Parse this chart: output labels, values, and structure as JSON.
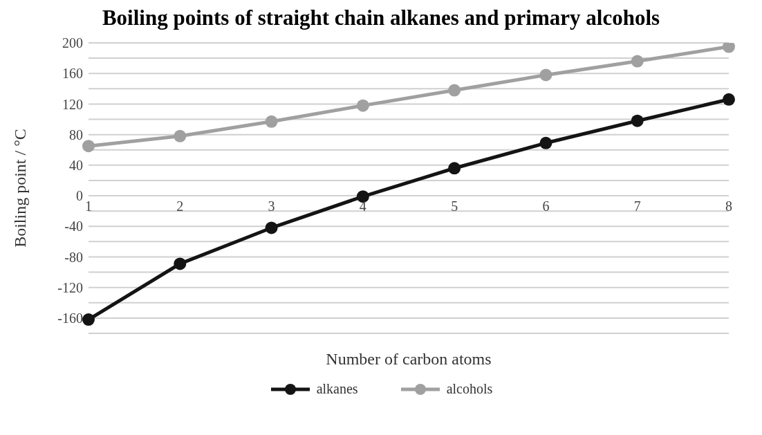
{
  "chart_data": {
    "type": "line",
    "title": "Boiling points of straight chain alkanes and primary alcohols",
    "xlabel": "Number of carbon atoms",
    "ylabel": "Boiling point / °C",
    "categories": [
      "1",
      "2",
      "3",
      "4",
      "5",
      "6",
      "7",
      "8"
    ],
    "series": [
      {
        "name": "alkanes",
        "color": "#141414",
        "values": [
          -162,
          -89,
          -42,
          -1,
          36,
          69,
          98,
          126
        ]
      },
      {
        "name": "alcohols",
        "color": "#a0a0a0",
        "values": [
          65,
          78,
          97,
          118,
          138,
          158,
          176,
          195
        ]
      }
    ],
    "ylim": [
      -180,
      200
    ],
    "yticks": [
      {
        "value": -180,
        "label": null
      },
      -160,
      {
        "value": -140,
        "label": null
      },
      -120,
      {
        "value": -100,
        "label": null
      },
      -80,
      {
        "value": -60,
        "label": null
      },
      -40,
      {
        "value": -20,
        "label": null
      },
      0,
      {
        "value": 20,
        "label": null
      },
      40,
      {
        "value": 60,
        "label": null
      },
      80,
      {
        "value": 100,
        "label": null
      },
      120,
      {
        "value": 140,
        "label": null
      },
      160,
      {
        "value": 180,
        "label": null
      },
      200
    ],
    "grid": "y",
    "legend": "bottom",
    "marker": "circle",
    "line_style": "solid"
  }
}
